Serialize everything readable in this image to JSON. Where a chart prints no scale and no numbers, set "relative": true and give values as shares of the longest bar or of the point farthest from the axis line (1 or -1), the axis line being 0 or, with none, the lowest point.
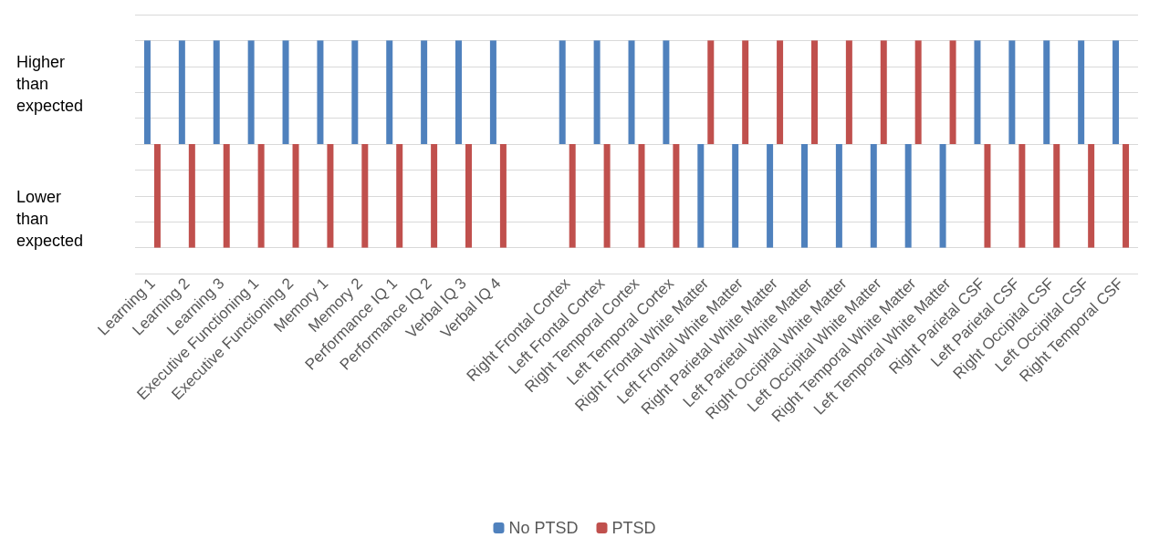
{
  "chart_data": {
    "type": "bar",
    "relative": true,
    "grid": "y",
    "legend": "bottom",
    "annotations": [
      "Higher than expected",
      "Lower than expected"
    ],
    "categories": [
      "Learning 1",
      "Learning 2",
      "Learning 3",
      "Executive Functioning 1",
      "Executive Functioning 2",
      "Memory 1",
      "Memory 2",
      "Performance IQ 1",
      "Performance IQ 2",
      "Verbal IQ 3",
      "Verbal IQ 4",
      null,
      "Right Frontal Cortex",
      "Left Frontal Cortex",
      "Right Temporal Cortex",
      "Left Temporal Cortex",
      "Right Frontal White Matter",
      "Left Frontal White Matter",
      "Right Parietal White Matter",
      "Left Parietal White Matter",
      "Right Occipital White Matter",
      "Left Occipital White Matter",
      "Right Temporal White Matter",
      "Left Temporal White Matter",
      "Right Parietal CSF",
      "Left Parietal CSF",
      "Right Occipital CSF",
      "Left Occipital CSF",
      "Right Temporal CSF"
    ],
    "series": [
      {
        "name": "No PTSD",
        "color": "#4f81bd",
        "values": [
          1,
          1,
          1,
          1,
          1,
          1,
          1,
          1,
          1,
          1,
          1,
          null,
          1,
          1,
          1,
          1,
          -1,
          -1,
          -1,
          -1,
          -1,
          -1,
          -1,
          -1,
          1,
          1,
          1,
          1,
          1
        ]
      },
      {
        "name": "PTSD",
        "color": "#c0504d",
        "values": [
          -1,
          -1,
          -1,
          -1,
          -1,
          -1,
          -1,
          -1,
          -1,
          -1,
          -1,
          null,
          -1,
          -1,
          -1,
          -1,
          1,
          1,
          1,
          1,
          1,
          1,
          1,
          1,
          -1,
          -1,
          -1,
          -1,
          -1
        ]
      }
    ]
  }
}
